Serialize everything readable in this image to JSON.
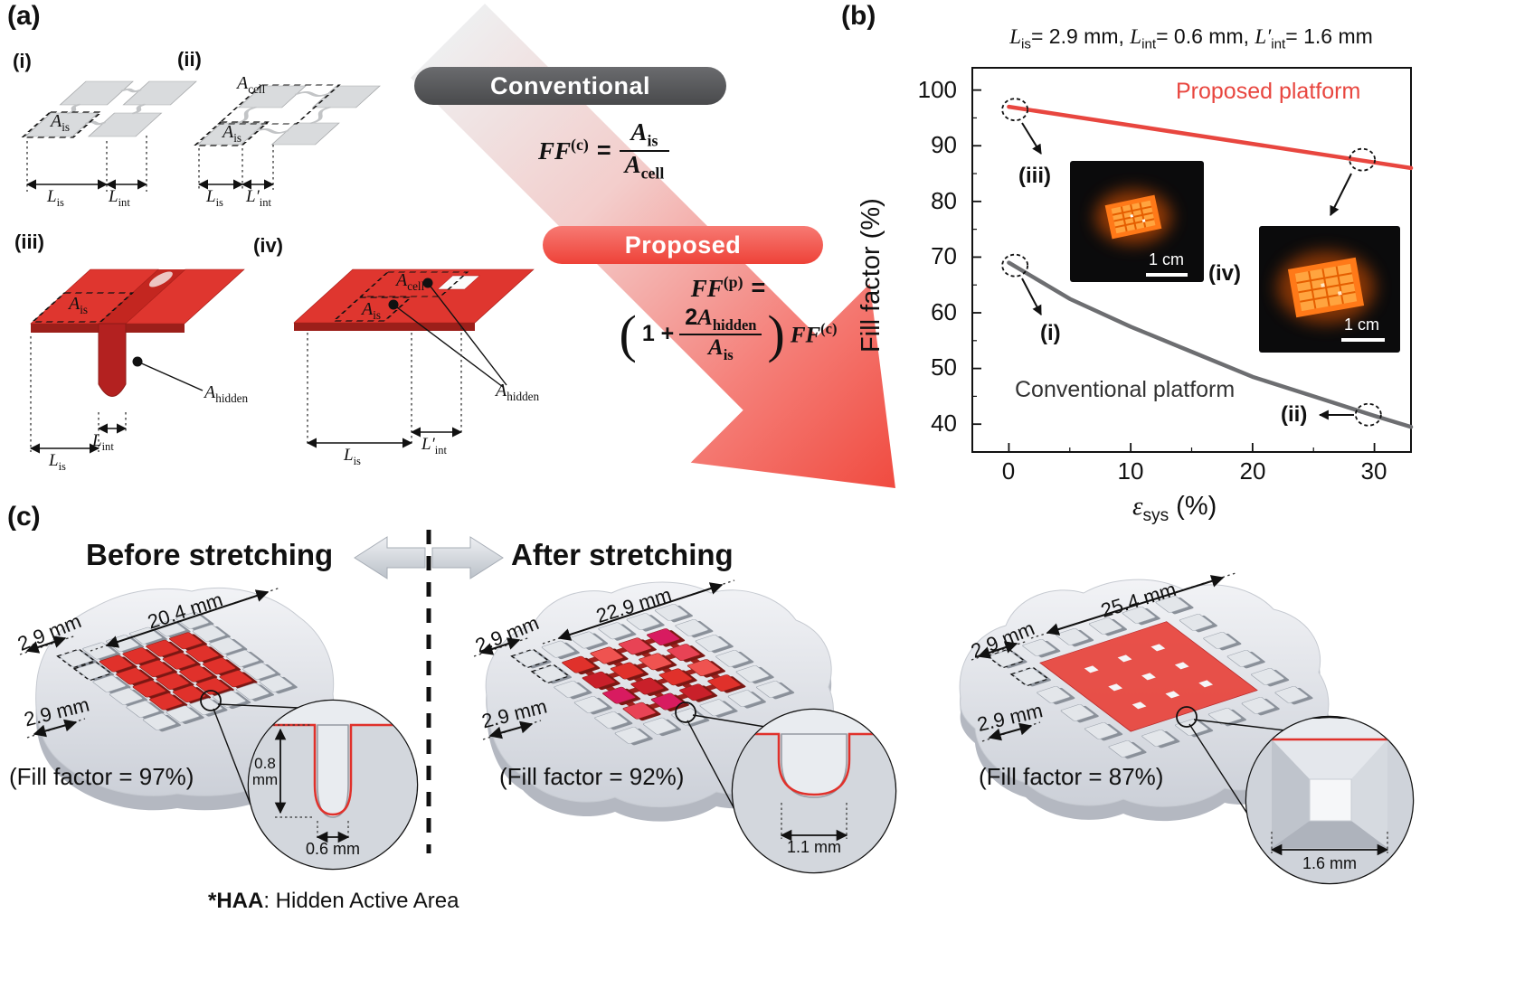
{
  "colors": {
    "red": "#e0312b",
    "red_badge": "#f0534b",
    "dark_badge": "#545557",
    "chart_proposed": "#e8463f",
    "chart_conventional": "#6d6e71",
    "platform_gray": "#e3e6ea",
    "inset_bg": "#0b0b0c"
  },
  "panel_a": {
    "tag": "(a)",
    "subfig_tags": {
      "i": "(i)",
      "ii": "(ii)",
      "iii": "(iii)",
      "iv": "(iv)"
    },
    "badge_conventional": "Conventional",
    "badge_proposed": "Proposed",
    "labels": {
      "A_is": {
        "base": "A",
        "sub": "is"
      },
      "A_cell": {
        "base": "A",
        "sub": "cell"
      },
      "A_hidden": {
        "base": "A",
        "sub": "hidden"
      },
      "L_is": {
        "base": "L",
        "sub": "is"
      },
      "L_int": {
        "base": "L",
        "sub": "int"
      },
      "L_int_prime": {
        "base": "L′",
        "sub": "int"
      }
    },
    "formula_conventional": {
      "lhs": "FF",
      "lhs_sup": "(c)",
      "equals": "=",
      "num_base": "A",
      "num_sub": "is",
      "den_base": "A",
      "den_sub": "cell"
    },
    "formula_proposed": {
      "lhs": "FF",
      "lhs_sup": "(p)",
      "equals": "=",
      "paren_open": "(",
      "paren_close": ")",
      "one_plus": "1 +",
      "num_coef": "2",
      "num_base": "A",
      "num_sub": "hidden",
      "den_base": "A",
      "den_sub": "is",
      "rhs": "FF",
      "rhs_sup": "(c)"
    }
  },
  "chart_data": {
    "type": "line",
    "title": "L_is = 2.9 mm, L_int = 0.6 mm, L'_int = 1.6 mm",
    "xlabel": "ε_sys (%)",
    "ylabel": "Fill factor (%)",
    "xlim": [
      -3,
      33
    ],
    "ylim": [
      35,
      104
    ],
    "xticks": [
      0,
      10,
      20,
      30
    ],
    "yticks": [
      100,
      90,
      80,
      70,
      60,
      50,
      40
    ],
    "xminor": [
      5,
      15,
      25
    ],
    "yminor": [
      45,
      55,
      65,
      75,
      85,
      95
    ],
    "grid": false,
    "legend_position": "inline",
    "series": [
      {
        "name": "Proposed platform",
        "color": "#e8463f",
        "x": [
          0,
          33
        ],
        "y": [
          97,
          86
        ]
      },
      {
        "name": "Conventional platform",
        "color": "#6d6e71",
        "x": [
          0,
          5,
          10,
          15,
          20,
          25,
          30,
          33
        ],
        "y": [
          69,
          62.5,
          57.5,
          53,
          48.5,
          45,
          41.5,
          39.5
        ]
      }
    ],
    "annotations": [
      {
        "label": "(iii)",
        "point": [
          0.5,
          96.5
        ]
      },
      {
        "label": "(iv)",
        "point": [
          29,
          87.5
        ]
      },
      {
        "label": "(i)",
        "point": [
          0.5,
          68.5
        ]
      },
      {
        "label": "(ii)",
        "point": [
          29.5,
          41.7
        ]
      }
    ]
  },
  "panel_b": {
    "tag": "(b)",
    "title_parts": [
      {
        "base": "L",
        "sub": "is",
        "rest": "= 2.9 mm, "
      },
      {
        "base": "L",
        "sub": "int",
        "rest": "= 0.6 mm, "
      },
      {
        "base": "L′",
        "sub": "int",
        "rest": "= 1.6 mm"
      }
    ],
    "xlabel": {
      "base": "ε",
      "sub": "sys",
      "rest": " (%)"
    },
    "inset_1_scale": "1 cm",
    "inset_2_scale": "1 cm"
  },
  "panel_c": {
    "tag": "(c)",
    "header_before": "Before stretching",
    "header_after": "After stretching",
    "platforms": [
      {
        "top_dim": "20.4 mm",
        "side_dim_1": "2.9 mm",
        "side_dim_2": "2.9 mm",
        "fill_factor": "(Fill factor = 97%)",
        "zoom_depth_value": "0.8",
        "zoom_depth_unit": "mm",
        "zoom_width": "0.6 mm"
      },
      {
        "top_dim": "22.9 mm",
        "side_dim_1": "2.9 mm",
        "side_dim_2": "2.9 mm",
        "fill_factor": "(Fill factor = 92%)",
        "zoom_width": "1.1 mm"
      },
      {
        "top_dim": "25.4 mm",
        "side_dim_1": "2.9 mm",
        "side_dim_2": "2.9 mm",
        "fill_factor": "(Fill factor = 87%)",
        "zoom_width": "1.6 mm"
      }
    ],
    "footnote_bold": "*HAA",
    "footnote_rest": ": Hidden Active Area"
  }
}
